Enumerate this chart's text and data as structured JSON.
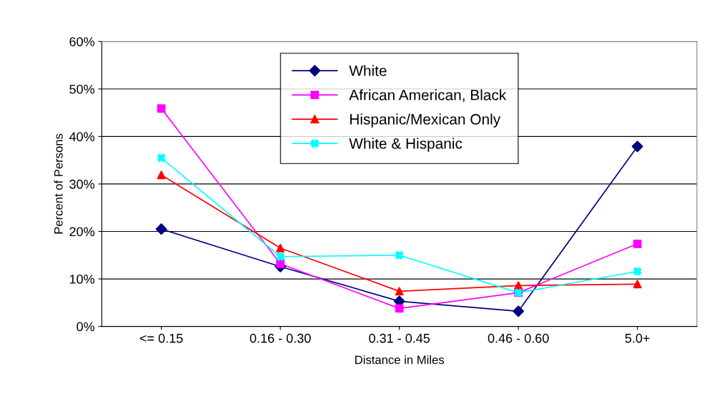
{
  "chart_data": {
    "type": "line",
    "xlabel": "Distance in Miles",
    "ylabel": "Percent of Persons",
    "categories": [
      "<= 0.15",
      "0.16 - 0.30",
      "0.31 - 0.45",
      "0.46 - 0.60",
      "5.0+"
    ],
    "series": [
      {
        "name": "White",
        "color": "#000080",
        "marker": "diamond",
        "values": [
          20.5,
          12.6,
          5.3,
          3.2,
          37.9
        ]
      },
      {
        "name": "African American, Black",
        "color": "#ff00ff",
        "marker": "square",
        "values": [
          45.9,
          13.2,
          3.8,
          7.1,
          17.4
        ]
      },
      {
        "name": "Hispanic/Mexican Only",
        "color": "#ff0000",
        "marker": "triangle",
        "values": [
          31.9,
          16.5,
          7.4,
          8.6,
          8.9
        ]
      },
      {
        "name": "White & Hispanic",
        "color": "#00ffff",
        "marker": "cross",
        "values": [
          35.5,
          14.7,
          15.0,
          7.1,
          11.6
        ]
      }
    ],
    "ylim": [
      0,
      60
    ],
    "yticks": [
      {
        "value": 0,
        "label": "0%"
      },
      {
        "value": 10,
        "label": "10%"
      },
      {
        "value": 20,
        "label": "20%"
      },
      {
        "value": 30,
        "label": "30%"
      },
      {
        "value": 40,
        "label": "40%"
      },
      {
        "value": 50,
        "label": "50%"
      },
      {
        "value": 60,
        "label": "60%"
      }
    ],
    "grid": "y",
    "legend": "top",
    "line_style": "solid"
  }
}
